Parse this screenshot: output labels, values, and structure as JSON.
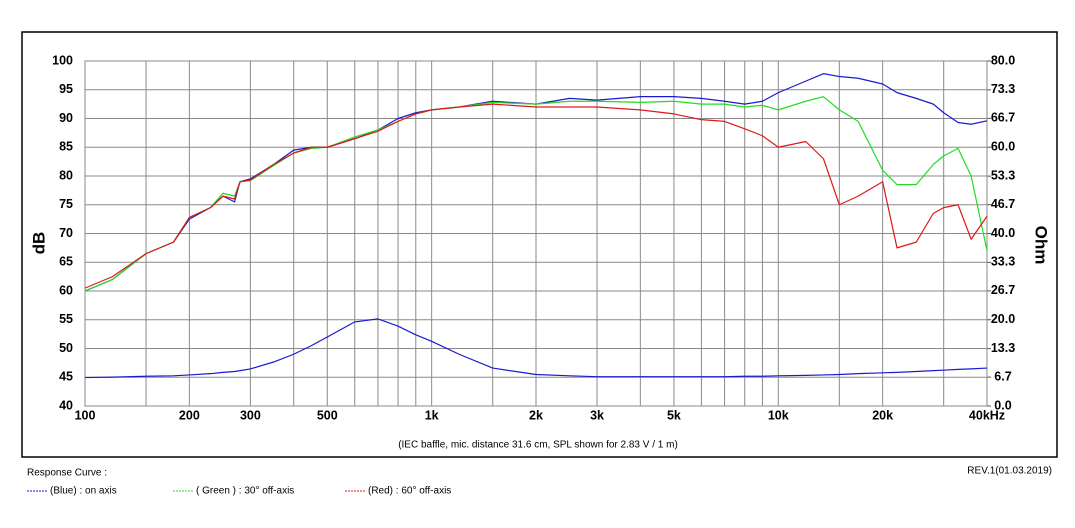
{
  "chart_data": {
    "type": "line",
    "xscale": "log",
    "grid": true,
    "y_label": "dB",
    "y2_label": "Ohm",
    "annotation": "(IEC baffle, mic. distance 31.6 cm, SPL shown for 2.83 V / 1 m)",
    "legend_title": "Response Curve :",
    "revision": "REV.1(01.03.2019)",
    "xlim": [
      100,
      40000
    ],
    "xticks": [
      100,
      200,
      300,
      500,
      {
        "value": 1000,
        "label": "1k"
      },
      {
        "value": 2000,
        "label": "2k"
      },
      {
        "value": 3000,
        "label": "3k"
      },
      {
        "value": 5000,
        "label": "5k"
      },
      {
        "value": 10000,
        "label": "10k"
      },
      {
        "value": 20000,
        "label": "20k"
      },
      {
        "value": 40000,
        "label": "40kHz"
      }
    ],
    "xminor": [
      150,
      400,
      600,
      700,
      800,
      900,
      1500,
      4000,
      6000,
      7000,
      8000,
      9000,
      15000,
      30000
    ],
    "ylim": [
      40,
      100
    ],
    "yticks": [
      40,
      45,
      50,
      55,
      60,
      65,
      70,
      75,
      80,
      85,
      90,
      95,
      100
    ],
    "y2lim": [
      0,
      80
    ],
    "y2ticks": [
      {
        "value": 0,
        "label": "0.0"
      },
      6.7,
      13.3,
      {
        "value": 20,
        "label": "20.0"
      },
      26.7,
      33.3,
      {
        "value": 40,
        "label": "40.0"
      },
      46.7,
      53.3,
      {
        "value": 60,
        "label": "60.0"
      },
      66.7,
      73.3,
      {
        "value": 80,
        "label": "80.0"
      }
    ],
    "x": [
      100,
      120,
      150,
      180,
      200,
      230,
      250,
      270,
      280,
      300,
      350,
      400,
      450,
      500,
      600,
      700,
      800,
      900,
      1000,
      1200,
      1500,
      2000,
      2500,
      3000,
      4000,
      5000,
      6000,
      7000,
      8000,
      9000,
      10000,
      12000,
      13500,
      15000,
      17000,
      20000,
      22000,
      25000,
      28000,
      30000,
      33000,
      36000,
      40000
    ],
    "series": [
      {
        "name": "(Blue)  :  on axis",
        "color": "#1a1ad0",
        "values": [
          60,
          62,
          66.5,
          68.5,
          72.5,
          74.5,
          76.5,
          75.5,
          79,
          79.5,
          82,
          84.5,
          85,
          85,
          86.5,
          88,
          90,
          91,
          91.5,
          92,
          93,
          92.5,
          93.5,
          93.2,
          93.8,
          93.8,
          93.5,
          93,
          92.5,
          93,
          94.5,
          96.5,
          97.8,
          97.3,
          97,
          96,
          94.5,
          93.5,
          92.5,
          91,
          89.3,
          89,
          89.6
        ]
      },
      {
        "name": "( Green ) : 30° off-axis",
        "color": "#22dd22",
        "values": [
          60,
          62,
          66.5,
          68.5,
          72.8,
          74.5,
          77,
          76.5,
          79,
          79.2,
          81.8,
          84,
          84.8,
          85,
          86.8,
          88,
          89.5,
          90.8,
          91.5,
          92,
          92.8,
          92.5,
          93,
          93,
          92.8,
          93,
          92.5,
          92.5,
          92,
          92.3,
          91.5,
          93,
          93.8,
          91.5,
          89.5,
          81,
          78.5,
          78.5,
          82,
          83.5,
          84.8,
          80,
          67
        ]
      },
      {
        "name": "(Red) : 60° off-axis",
        "color": "#e01818",
        "values": [
          60.5,
          62.5,
          66.5,
          68.5,
          72.8,
          74.5,
          76.5,
          76,
          79,
          79.3,
          82,
          84,
          85,
          85,
          86.5,
          87.8,
          89.5,
          90.8,
          91.5,
          92,
          92.5,
          92,
          92,
          92,
          91.5,
          90.8,
          89.8,
          89.5,
          88.2,
          87,
          85,
          86,
          83,
          75,
          76.5,
          79,
          67.5,
          68.5,
          73.5,
          74.5,
          75,
          69,
          73
        ]
      },
      {
        "axis": "y2",
        "color": "#1a1ad0",
        "values": [
          6.6,
          6.7,
          6.9,
          7.0,
          7.2,
          7.5,
          7.8,
          8.0,
          8.2,
          8.6,
          10.2,
          12,
          14,
          16,
          19.5,
          20.2,
          18.5,
          16.5,
          15,
          12,
          8.8,
          7.3,
          7,
          6.8,
          6.8,
          6.8,
          6.8,
          6.8,
          6.9,
          6.9,
          7,
          7.1,
          7.2,
          7.3,
          7.5,
          7.7,
          7.8,
          8.0,
          8.2,
          8.3,
          8.5,
          8.6,
          8.8
        ]
      }
    ]
  }
}
